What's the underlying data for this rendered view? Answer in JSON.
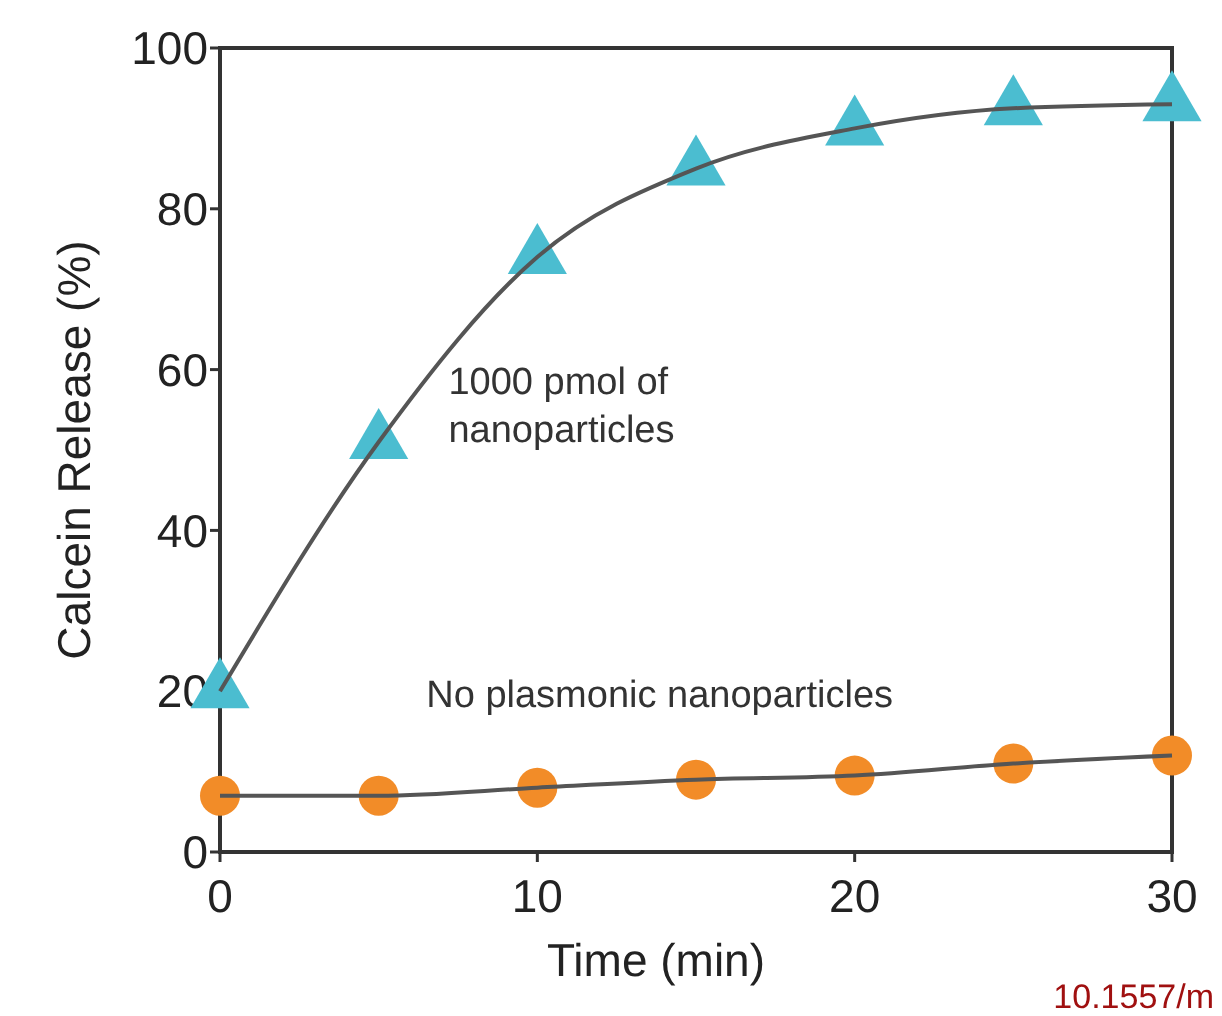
{
  "chart_data": {
    "type": "line",
    "xlabel": "Time (min)",
    "ylabel": "Calcein Release (%)",
    "x": [
      0,
      5,
      10,
      15,
      20,
      25,
      30
    ],
    "series": [
      {
        "type": "scatter",
        "name": "1000 pmol of nanoparticles",
        "color": "#4bbdd0",
        "marker": "triangle",
        "values": [
          20,
          51,
          74,
          85,
          90,
          92.5,
          93
        ]
      },
      {
        "type": "scatter",
        "name": "No plasmonic nanoparticles",
        "color": "#f28c28",
        "marker": "circle",
        "values": [
          7,
          7,
          8,
          9,
          9.5,
          11,
          12
        ]
      },
      {
        "type": "line",
        "color": "#555555",
        "marker": "none",
        "values": [
          20,
          51,
          74,
          85,
          90,
          92.5,
          93
        ]
      },
      {
        "type": "line",
        "color": "#555555",
        "marker": "none",
        "values": [
          7,
          7,
          8,
          9,
          9.5,
          11,
          12
        ]
      }
    ],
    "xlim": [
      0,
      30
    ],
    "xticks": [
      0,
      10,
      20,
      30
    ],
    "ylim": [
      0,
      100
    ],
    "yticks": [
      0,
      20,
      40,
      60,
      80,
      100
    ],
    "grid": false,
    "legend": false,
    "annotations": [
      "10.1557/m"
    ]
  }
}
